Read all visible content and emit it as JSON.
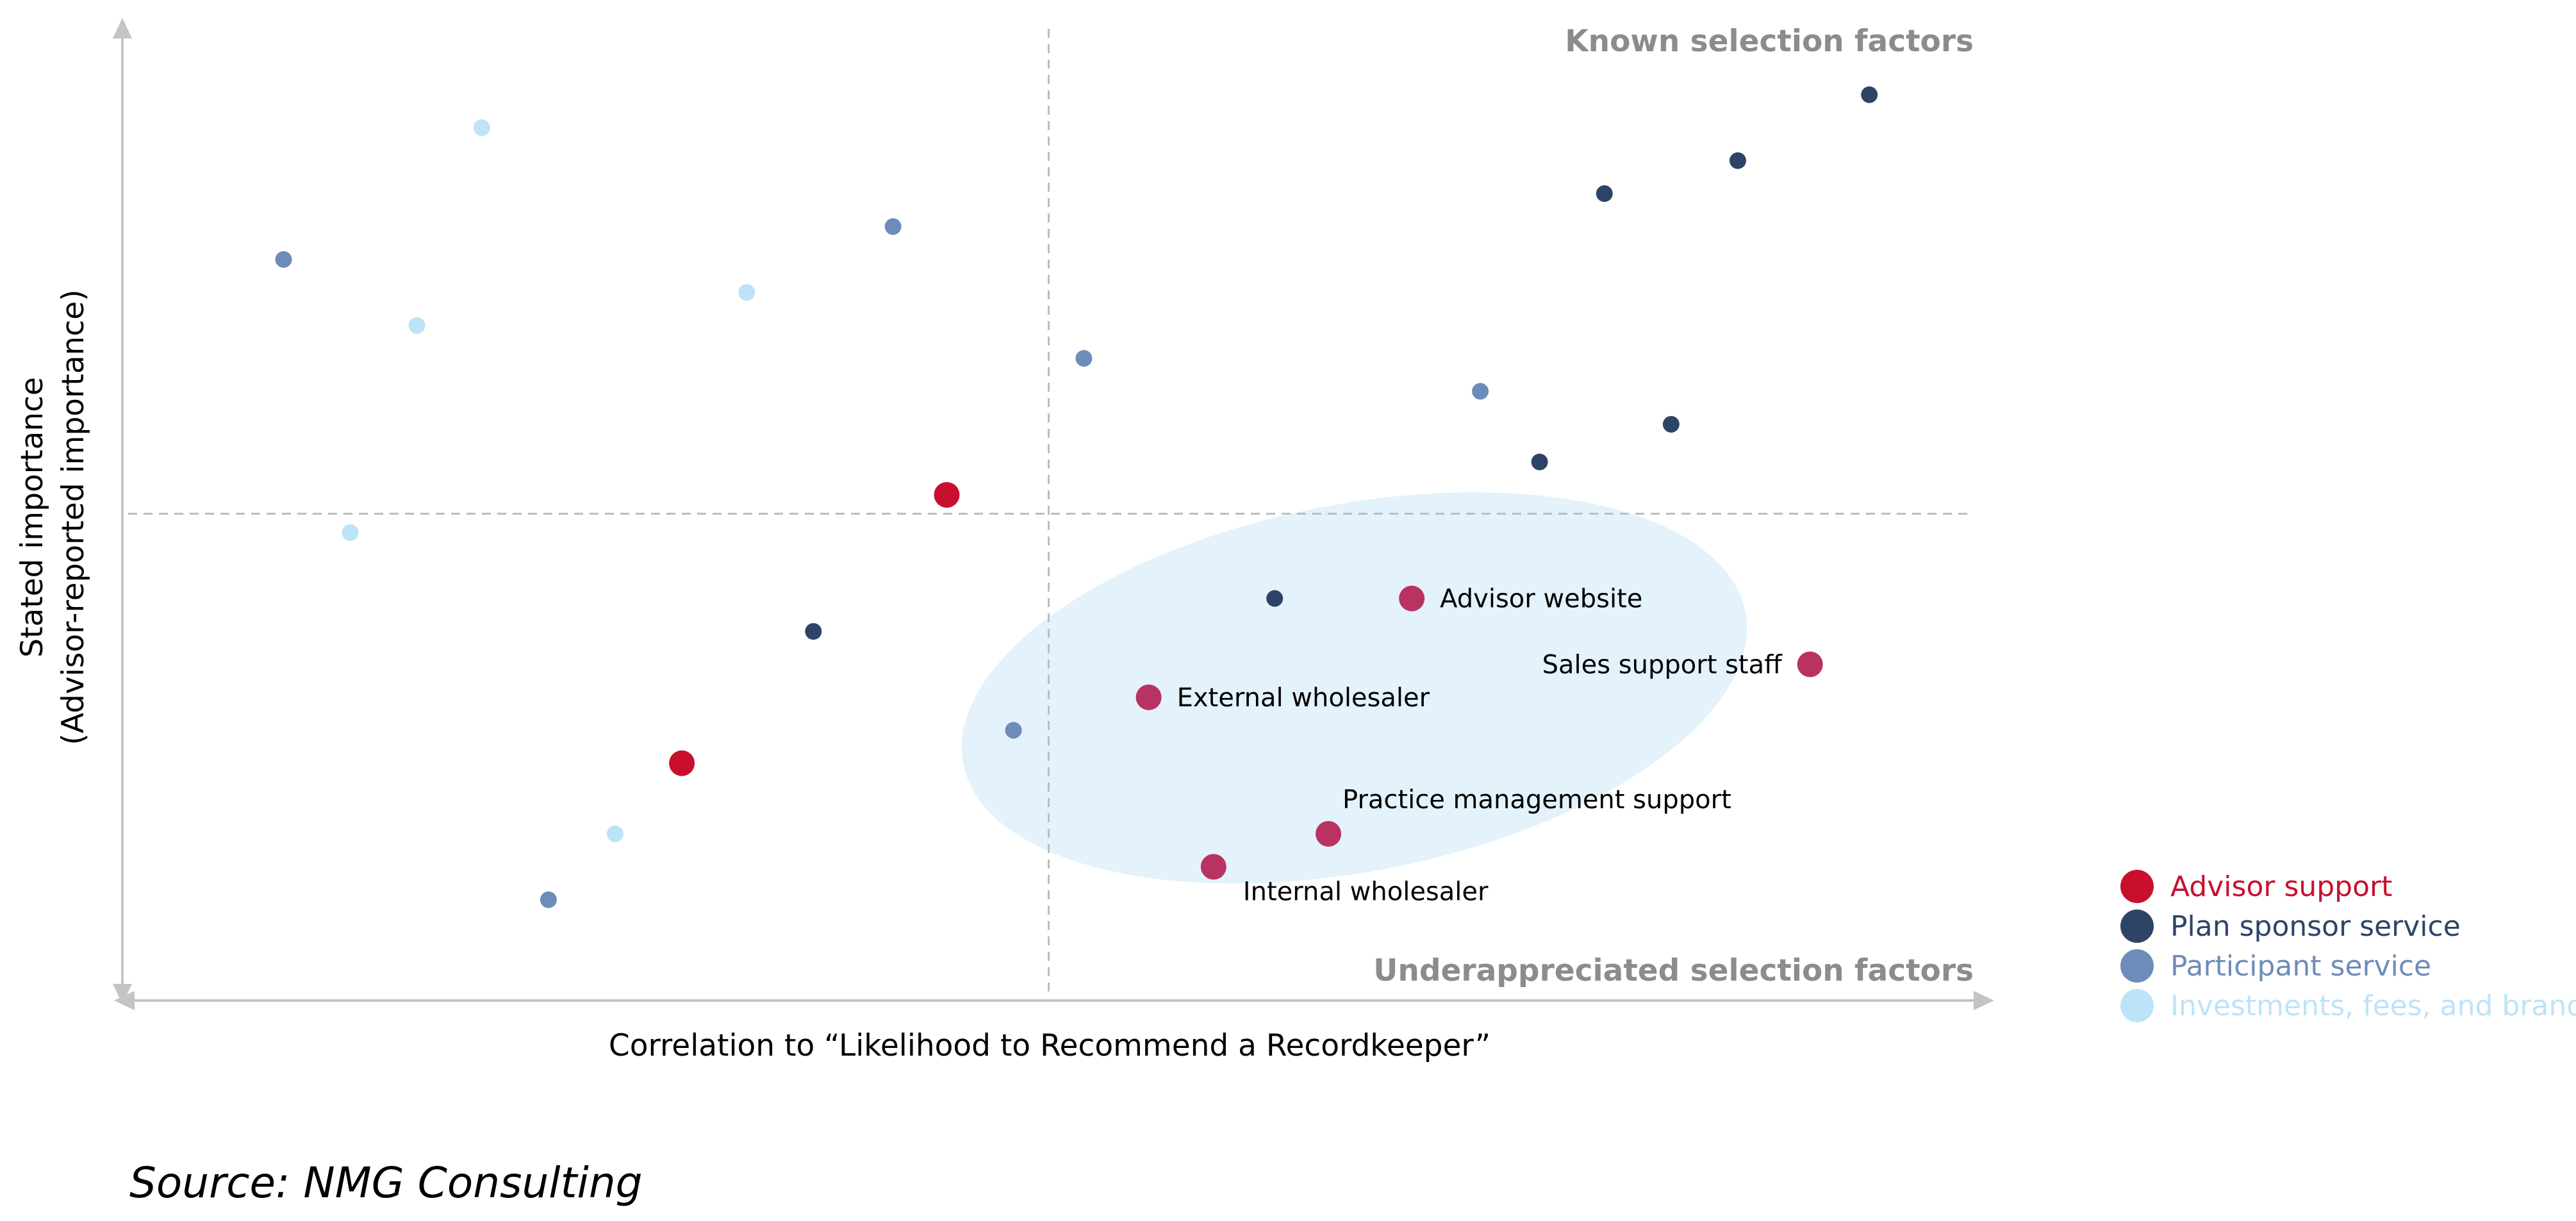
{
  "chart_data": {
    "type": "scatter",
    "xlabel": "Correlation to “Likelihood to Recommend a Recordkeeper”",
    "ylabel": [
      "Stated importance",
      "(Advisor-reported importance)"
    ],
    "quadrant_labels": {
      "top_right": "Known selection factors",
      "bottom_right": "Underappreciated selection factors"
    },
    "source": "Source: NMG Consulting",
    "legend_position": "right",
    "grid": false,
    "x_axis_range": [
      0,
      100
    ],
    "y_axis_range": [
      0,
      100
    ],
    "divider": {
      "x": 50,
      "y": 50
    },
    "highlight_region": {
      "center": [
        66.5,
        31.5
      ],
      "radius": [
        21.5,
        19.5
      ],
      "rotation_deg": -11,
      "color": "#e3f2fb"
    },
    "series": [
      {
        "name": "Advisor support",
        "color": "#c8102e",
        "points": [
          {
            "x": 44.5,
            "y": 52
          },
          {
            "x": 30.2,
            "y": 23.5
          }
        ]
      },
      {
        "name": "Plan sponsor service",
        "color": "#2e4467",
        "points": [
          {
            "x": 94.3,
            "y": 94.5
          },
          {
            "x": 87.2,
            "y": 87.5
          },
          {
            "x": 80,
            "y": 84
          },
          {
            "x": 83.6,
            "y": 59.5
          },
          {
            "x": 76.5,
            "y": 55.5
          },
          {
            "x": 62.2,
            "y": 41
          },
          {
            "x": 37.3,
            "y": 37.5
          }
        ]
      },
      {
        "name": "Participant service",
        "color": "#6e8cb9",
        "points": [
          {
            "x": 8.7,
            "y": 77
          },
          {
            "x": 41.6,
            "y": 80.5
          },
          {
            "x": 51.9,
            "y": 66.5
          },
          {
            "x": 73.3,
            "y": 63
          },
          {
            "x": 48.1,
            "y": 27
          },
          {
            "x": 23,
            "y": 9
          }
        ]
      },
      {
        "name": "Investments, fees, and brand",
        "color": "#bde3f9",
        "points": [
          {
            "x": 19.4,
            "y": 91
          },
          {
            "x": 15.9,
            "y": 70
          },
          {
            "x": 33.7,
            "y": 73.5
          },
          {
            "x": 12.3,
            "y": 48
          },
          {
            "x": 26.6,
            "y": 16
          }
        ]
      }
    ],
    "highlighted_points": {
      "color": "#b83262",
      "points": [
        {
          "label": "Advisor website",
          "x": 69.6,
          "y": 41,
          "label_side": "right"
        },
        {
          "label": "Sales support staff",
          "x": 91.1,
          "y": 34,
          "label_side": "left"
        },
        {
          "label": "External wholesaler",
          "x": 55.4,
          "y": 30.5,
          "label_side": "right"
        },
        {
          "label": "Practice management support",
          "x": 65.1,
          "y": 16,
          "label_side": "above-right"
        },
        {
          "label": "Internal wholesaler",
          "x": 58.9,
          "y": 12.5,
          "label_side": "below-right"
        }
      ]
    }
  }
}
